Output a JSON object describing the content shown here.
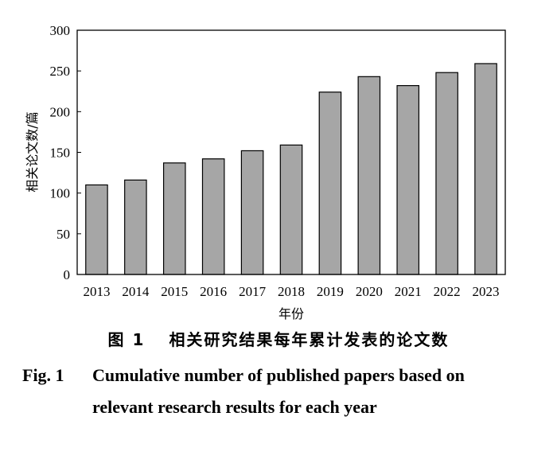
{
  "chart_data": {
    "type": "bar",
    "categories": [
      "2013",
      "2014",
      "2015",
      "2016",
      "2017",
      "2018",
      "2019",
      "2020",
      "2021",
      "2022",
      "2023"
    ],
    "values": [
      110,
      116,
      137,
      142,
      152,
      159,
      224,
      243,
      232,
      248,
      259
    ],
    "title": "",
    "xlabel": "年份",
    "ylabel": "相关论文数/篇",
    "ylim": [
      0,
      300
    ],
    "yticks": [
      0,
      50,
      100,
      150,
      200,
      250,
      300
    ],
    "grid": false,
    "bar_color": "#a6a6a6"
  },
  "caption": {
    "cn_label": "图 1",
    "cn_text": "相关研究结果每年累计发表的论文数",
    "en_label": "Fig. 1",
    "en_line1": "Cumulative number of published papers based on",
    "en_line2": "relevant research results for each year"
  }
}
